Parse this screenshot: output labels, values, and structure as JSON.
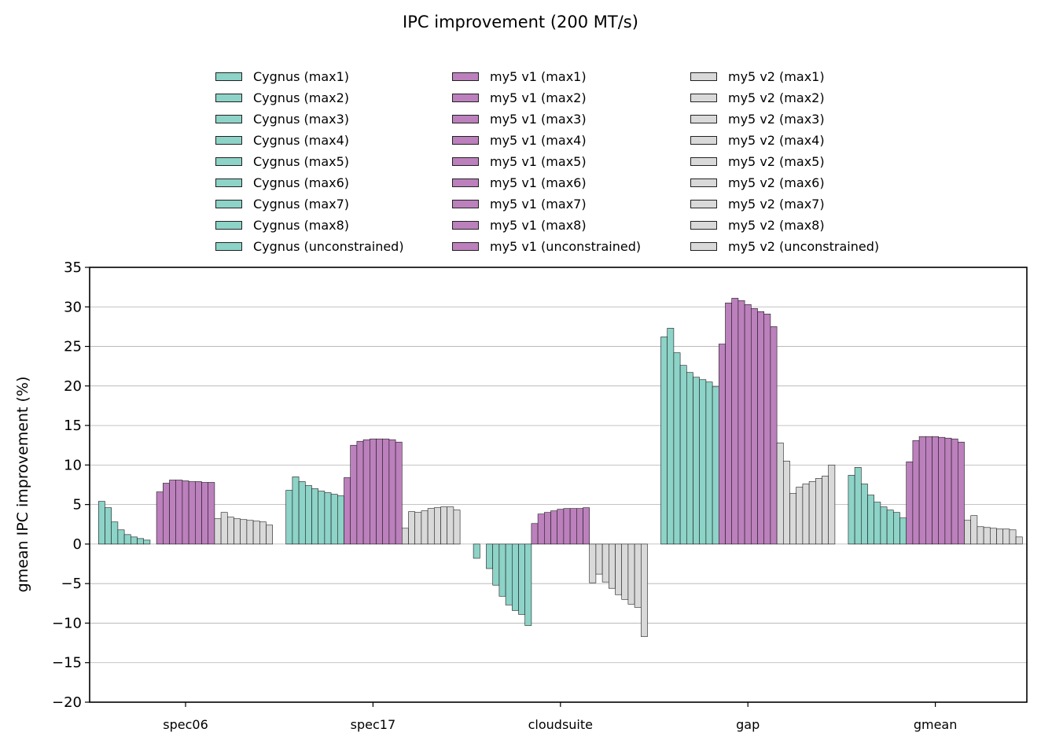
{
  "chart_data": {
    "type": "bar",
    "title": "IPC improvement (200 MT/s)",
    "xlabel": "",
    "ylabel": "gmean IPC improvement (%)",
    "ylim": [
      -20,
      35
    ],
    "yticks": [
      "35",
      "30",
      "25",
      "20",
      "15",
      "10",
      "5",
      "0",
      "−5",
      "−10",
      "−15",
      "−20"
    ],
    "ytick_values": [
      35,
      30,
      25,
      20,
      15,
      10,
      5,
      0,
      -5,
      -10,
      -15,
      -20
    ],
    "grid": "horizontal",
    "legend_position": "top-center",
    "categories": [
      "spec06",
      "spec17",
      "cloudsuite",
      "gap",
      "gmean"
    ],
    "groups": [
      {
        "name": "Cygnus",
        "color": "#8dd3c7",
        "series": [
          {
            "name": "Cygnus (max1)",
            "values": [
              5.4,
              6.8,
              -1.8,
              26.2,
              8.7
            ]
          },
          {
            "name": "Cygnus (max2)",
            "values": [
              4.6,
              8.5,
              0.0,
              27.3,
              9.7
            ]
          },
          {
            "name": "Cygnus (max3)",
            "values": [
              2.8,
              7.9,
              -3.1,
              24.2,
              7.6
            ]
          },
          {
            "name": "Cygnus (max4)",
            "values": [
              1.8,
              7.4,
              -5.2,
              22.6,
              6.2
            ]
          },
          {
            "name": "Cygnus (max5)",
            "values": [
              1.2,
              7.0,
              -6.6,
              21.7,
              5.3
            ]
          },
          {
            "name": "Cygnus (max6)",
            "values": [
              0.9,
              6.7,
              -7.7,
              21.1,
              4.7
            ]
          },
          {
            "name": "Cygnus (max7)",
            "values": [
              0.7,
              6.5,
              -8.4,
              20.8,
              4.3
            ]
          },
          {
            "name": "Cygnus (max8)",
            "values": [
              0.5,
              6.3,
              -8.9,
              20.5,
              4.0
            ]
          },
          {
            "name": "Cygnus (unconstrained)",
            "values": [
              0.0,
              6.1,
              -10.3,
              19.9,
              3.3
            ]
          }
        ]
      },
      {
        "name": "my5 v1",
        "color": "#bc80bd",
        "series": [
          {
            "name": "my5 v1 (max1)",
            "values": [
              6.6,
              8.4,
              2.6,
              25.3,
              10.4
            ]
          },
          {
            "name": "my5 v1 (max2)",
            "values": [
              7.7,
              12.5,
              3.8,
              30.5,
              13.1
            ]
          },
          {
            "name": "my5 v1 (max3)",
            "values": [
              8.1,
              13.0,
              4.0,
              31.1,
              13.6
            ]
          },
          {
            "name": "my5 v1 (max4)",
            "values": [
              8.1,
              13.2,
              4.2,
              30.8,
              13.6
            ]
          },
          {
            "name": "my5 v1 (max5)",
            "values": [
              8.0,
              13.3,
              4.4,
              30.3,
              13.6
            ]
          },
          {
            "name": "my5 v1 (max6)",
            "values": [
              7.9,
              13.3,
              4.5,
              29.8,
              13.5
            ]
          },
          {
            "name": "my5 v1 (max7)",
            "values": [
              7.9,
              13.3,
              4.5,
              29.4,
              13.4
            ]
          },
          {
            "name": "my5 v1 (max8)",
            "values": [
              7.8,
              13.2,
              4.5,
              29.1,
              13.3
            ]
          },
          {
            "name": "my5 v1 (unconstrained)",
            "values": [
              7.8,
              12.9,
              4.6,
              27.5,
              12.9
            ]
          }
        ]
      },
      {
        "name": "my5 v2",
        "color": "#d9d9d9",
        "series": [
          {
            "name": "my5 v2 (max1)",
            "values": [
              3.2,
              2.0,
              -4.9,
              12.8,
              3.0
            ]
          },
          {
            "name": "my5 v2 (max2)",
            "values": [
              4.0,
              4.1,
              -3.8,
              10.5,
              3.6
            ]
          },
          {
            "name": "my5 v2 (max3)",
            "values": [
              3.4,
              4.0,
              -4.8,
              6.4,
              2.2
            ]
          },
          {
            "name": "my5 v2 (max4)",
            "values": [
              3.2,
              4.2,
              -5.6,
              7.2,
              2.1
            ]
          },
          {
            "name": "my5 v2 (max5)",
            "values": [
              3.1,
              4.5,
              -6.4,
              7.6,
              2.0
            ]
          },
          {
            "name": "my5 v2 (max6)",
            "values": [
              3.0,
              4.6,
              -7.0,
              7.9,
              1.9
            ]
          },
          {
            "name": "my5 v2 (max7)",
            "values": [
              2.9,
              4.7,
              -7.6,
              8.3,
              1.9
            ]
          },
          {
            "name": "my5 v2 (max8)",
            "values": [
              2.8,
              4.7,
              -8.0,
              8.6,
              1.8
            ]
          },
          {
            "name": "my5 v2 (unconstrained)",
            "values": [
              2.4,
              4.3,
              -11.7,
              10.0,
              0.9
            ]
          }
        ]
      }
    ]
  }
}
